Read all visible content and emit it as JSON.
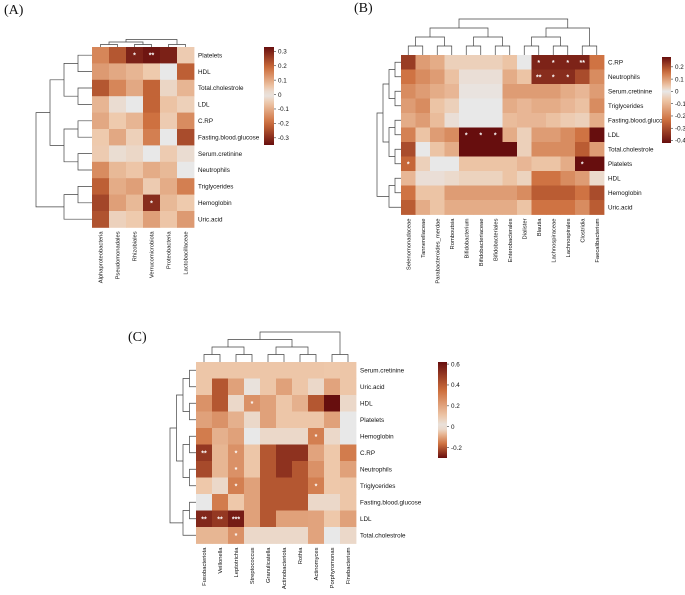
{
  "chart_data": [
    {
      "type": "heatmap",
      "panel_label": "(A)",
      "rows": [
        "Platelets",
        "HDL",
        "Total.cholestrole",
        "LDL",
        "C.RP",
        "Fasting.blood.glucose",
        "Serum.cretinine",
        "Neutrophils",
        "Triglycerides",
        "Hemoglobin",
        "Uric.acid"
      ],
      "columns": [
        "Alphaproteobacteria",
        "Pseudomonadales",
        "Rhizobiales",
        "Verrucomicrobiota",
        "Proteobacteria",
        "Lactobacillaceae"
      ],
      "values": [
        [
          0.15,
          0.22,
          0.3,
          0.32,
          -0.32,
          -0.05
        ],
        [
          0.12,
          0.1,
          0.08,
          0.05,
          0.0,
          -0.22
        ],
        [
          0.22,
          0.15,
          0.1,
          0.2,
          0.03,
          0.08
        ],
        [
          0.08,
          0.02,
          0.0,
          0.2,
          0.06,
          0.04
        ],
        [
          0.1,
          0.05,
          0.08,
          0.18,
          -0.05,
          -0.15
        ],
        [
          0.05,
          0.1,
          0.04,
          0.16,
          0.0,
          -0.25
        ],
        [
          -0.05,
          -0.02,
          -0.03,
          0.0,
          -0.05,
          0.02
        ],
        [
          -0.15,
          -0.08,
          -0.06,
          -0.1,
          -0.08,
          0.0
        ],
        [
          -0.22,
          -0.1,
          -0.12,
          -0.05,
          -0.1,
          0.16
        ],
        [
          -0.26,
          -0.12,
          -0.08,
          -0.3,
          -0.08,
          0.05
        ],
        [
          -0.24,
          -0.04,
          0.05,
          -0.12,
          -0.06,
          0.12
        ]
      ],
      "significance": [
        {
          "row": 0,
          "col": 2,
          "label": "*"
        },
        {
          "row": 0,
          "col": 3,
          "label": "**"
        },
        {
          "row": 9,
          "col": 3,
          "label": "*"
        }
      ],
      "colorbar": {
        "min": -0.35,
        "max": 0.33,
        "ticks": [
          0.3,
          0.2,
          0.1,
          0,
          -0.1,
          -0.2,
          -0.3
        ]
      }
    },
    {
      "type": "heatmap",
      "panel_label": "(B)",
      "rows": [
        "C.RP",
        "Neutrophils",
        "Serum.cretinine",
        "Triglycerides",
        "Fasting.blood.glucose",
        "LDL",
        "Total.cholestrole",
        "Platelets",
        "HDL",
        "Hemoglobin",
        "Uric.acid"
      ],
      "columns": [
        "Selenomonadaceae",
        "Tannerellaceae",
        "Parabacteroides_merdae",
        "Romboutsia",
        "Bifidobacterium",
        "Bifidobacteriaceae",
        "Bifidobacteriales",
        "Enterobacterales",
        "Dialister",
        "Blautia",
        "Lachnospiraceae",
        "Lachnospirales",
        "Clostridia",
        "Faecalibacterium"
      ],
      "values": [
        [
          0.22,
          0.1,
          0.08,
          -0.05,
          -0.05,
          -0.05,
          -0.05,
          0.05,
          0.0,
          -0.38,
          -0.38,
          -0.38,
          -0.38,
          0.15
        ],
        [
          0.15,
          0.12,
          0.1,
          -0.08,
          -0.02,
          -0.02,
          -0.02,
          0.08,
          0.05,
          -0.36,
          -0.36,
          -0.36,
          -0.3,
          0.12
        ],
        [
          0.12,
          0.1,
          0.08,
          -0.1,
          -0.01,
          -0.01,
          -0.01,
          0.1,
          -0.15,
          -0.15,
          -0.15,
          -0.12,
          -0.1,
          0.1
        ],
        [
          0.1,
          0.12,
          0.05,
          -0.05,
          0.0,
          0.0,
          0.0,
          0.08,
          -0.1,
          -0.12,
          -0.12,
          -0.1,
          -0.08,
          0.12
        ],
        [
          0.08,
          0.1,
          0.06,
          -0.02,
          0.0,
          0.0,
          0.0,
          0.06,
          -0.1,
          -0.1,
          -0.08,
          -0.06,
          -0.05,
          0.08
        ],
        [
          -0.2,
          0.05,
          0.1,
          0.12,
          0.3,
          0.3,
          0.3,
          0.08,
          -0.05,
          0.1,
          0.1,
          0.12,
          0.15,
          0.28
        ],
        [
          -0.3,
          0.0,
          0.05,
          0.08,
          0.3,
          0.3,
          0.3,
          0.28,
          -0.05,
          0.12,
          0.12,
          0.12,
          0.18,
          0.1
        ],
        [
          -0.25,
          -0.05,
          0.0,
          0.0,
          0.05,
          0.05,
          0.05,
          0.05,
          -0.1,
          0.05,
          0.05,
          0.08,
          0.3,
          0.3
        ],
        [
          -0.1,
          -0.02,
          -0.02,
          0.02,
          0.03,
          0.03,
          0.03,
          0.05,
          0.03,
          0.15,
          0.15,
          0.12,
          0.1,
          0.02
        ],
        [
          0.15,
          0.05,
          0.05,
          0.1,
          0.1,
          0.1,
          0.1,
          0.1,
          0.12,
          0.18,
          0.18,
          0.18,
          0.15,
          0.2
        ],
        [
          0.18,
          0.08,
          0.05,
          0.08,
          0.08,
          0.08,
          0.08,
          0.08,
          0.05,
          0.15,
          0.15,
          0.15,
          0.12,
          0.18
        ]
      ],
      "significance": [
        {
          "row": 0,
          "col": 9,
          "label": "*"
        },
        {
          "row": 0,
          "col": 10,
          "label": "*"
        },
        {
          "row": 0,
          "col": 11,
          "label": "*"
        },
        {
          "row": 0,
          "col": 12,
          "label": "**"
        },
        {
          "row": 1,
          "col": 9,
          "label": "**"
        },
        {
          "row": 1,
          "col": 10,
          "label": "*"
        },
        {
          "row": 1,
          "col": 11,
          "label": "*"
        },
        {
          "row": 5,
          "col": 4,
          "label": "*"
        },
        {
          "row": 5,
          "col": 5,
          "label": "*"
        },
        {
          "row": 5,
          "col": 6,
          "label": "*"
        },
        {
          "row": 7,
          "col": 0,
          "label": "*"
        },
        {
          "row": 7,
          "col": 12,
          "label": "*"
        }
      ],
      "colorbar": {
        "min": -0.42,
        "max": 0.28,
        "ticks": [
          0.2,
          0.1,
          0,
          -0.1,
          -0.2,
          -0.3,
          -0.4
        ]
      }
    },
    {
      "type": "heatmap",
      "panel_label": "(C)",
      "rows": [
        "Serum.cretinine",
        "Uric.acid",
        "HDL",
        "Platelets",
        "Hemoglobin",
        "C.RP",
        "Neutrophils",
        "Triglycerides",
        "Fasting.blood.glucose",
        "LDL",
        "Total.cholestrole"
      ],
      "columns": [
        "Fusobacteriota",
        "Veillonella",
        "Leptotrichia",
        "Streptococcus",
        "Granulicatella",
        "Actinobacteriota",
        "Rothia",
        "Actinomyces",
        "Porphyromonas",
        "Finebacterium"
      ],
      "values": [
        [
          -0.05,
          -0.05,
          -0.05,
          -0.05,
          -0.05,
          -0.05,
          -0.05,
          -0.05,
          0.1,
          -0.05
        ],
        [
          -0.05,
          -0.2,
          -0.1,
          0.02,
          -0.05,
          -0.1,
          -0.05,
          0.05,
          0.2,
          -0.05
        ],
        [
          -0.12,
          -0.2,
          0.05,
          0.25,
          -0.1,
          -0.05,
          -0.08,
          -0.2,
          -0.3,
          0.05
        ],
        [
          -0.1,
          -0.12,
          -0.08,
          0.05,
          -0.1,
          -0.05,
          -0.05,
          -0.05,
          -0.1,
          0.0
        ],
        [
          -0.15,
          -0.08,
          -0.1,
          0.0,
          0.05,
          0.05,
          0.05,
          0.3,
          0.05,
          0.0
        ],
        [
          0.5,
          0.15,
          0.25,
          -0.05,
          -0.2,
          -0.25,
          -0.25,
          0.2,
          0.1,
          -0.15
        ],
        [
          0.45,
          0.15,
          0.25,
          -0.05,
          -0.2,
          -0.25,
          -0.2,
          0.25,
          0.1,
          -0.1
        ],
        [
          0.1,
          0.05,
          0.3,
          -0.1,
          -0.2,
          -0.2,
          -0.2,
          0.3,
          0.1,
          -0.05
        ],
        [
          0.0,
          -0.15,
          0.1,
          -0.1,
          -0.2,
          -0.2,
          -0.2,
          0.05,
          0.05,
          -0.05
        ],
        [
          0.55,
          0.5,
          0.58,
          -0.1,
          -0.2,
          -0.1,
          -0.1,
          0.2,
          0.1,
          -0.1
        ],
        [
          0.15,
          0.15,
          0.25,
          0.05,
          0.05,
          0.05,
          0.05,
          0.2,
          0.0,
          0.05
        ]
      ],
      "significance": [
        {
          "row": 2,
          "col": 3,
          "label": "*"
        },
        {
          "row": 4,
          "col": 7,
          "label": "*"
        },
        {
          "row": 5,
          "col": 0,
          "label": "**"
        },
        {
          "row": 5,
          "col": 2,
          "label": "*"
        },
        {
          "row": 6,
          "col": 2,
          "label": "*"
        },
        {
          "row": 7,
          "col": 2,
          "label": "*"
        },
        {
          "row": 7,
          "col": 7,
          "label": "*"
        },
        {
          "row": 9,
          "col": 0,
          "label": "**"
        },
        {
          "row": 9,
          "col": 1,
          "label": "**"
        },
        {
          "row": 9,
          "col": 2,
          "label": "***"
        },
        {
          "row": 10,
          "col": 2,
          "label": "*"
        }
      ],
      "colorbar": {
        "min": -0.3,
        "max": 0.62,
        "ticks": [
          0.6,
          0.4,
          0.2,
          0,
          -0.2
        ]
      }
    }
  ]
}
